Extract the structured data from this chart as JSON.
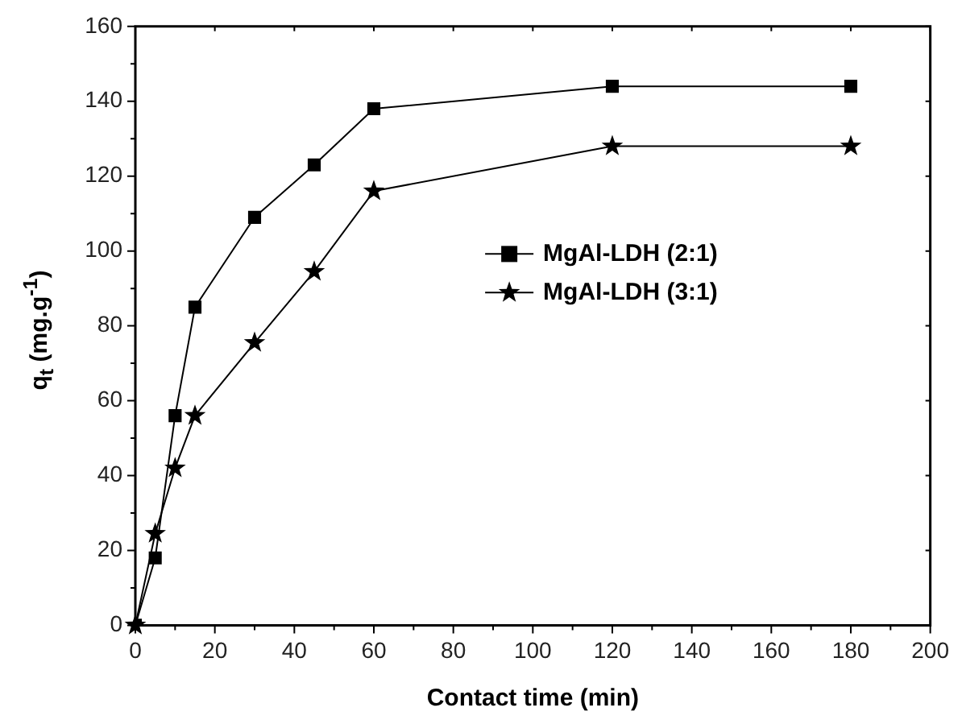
{
  "chart_data": {
    "type": "line",
    "xlabel": "Contact time (min)",
    "ylabel": "q$_{t}$ (mg.g$^{-1}$)",
    "x": [
      0,
      5,
      10,
      15,
      30,
      45,
      60,
      120,
      180
    ],
    "series": [
      {
        "name": "MgAl-LDH (2:1)",
        "color": "#000000",
        "marker": "square",
        "values": [
          0,
          18,
          56,
          85,
          109,
          123,
          138,
          144,
          144
        ]
      },
      {
        "name": "MgAl-LDH (3:1)",
        "color": "#000000",
        "marker": "star",
        "values": [
          0,
          24.5,
          42,
          56,
          75.5,
          94.5,
          116,
          128,
          128
        ]
      }
    ],
    "xlim": [
      0,
      200
    ],
    "xticks": [
      0,
      20,
      40,
      60,
      80,
      100,
      120,
      140,
      160,
      180,
      200
    ],
    "ylim": [
      0,
      160
    ],
    "yticks": [
      0,
      20,
      40,
      60,
      80,
      100,
      120,
      140,
      160
    ],
    "grid": false,
    "legend": "right",
    "line_style": "solid"
  }
}
